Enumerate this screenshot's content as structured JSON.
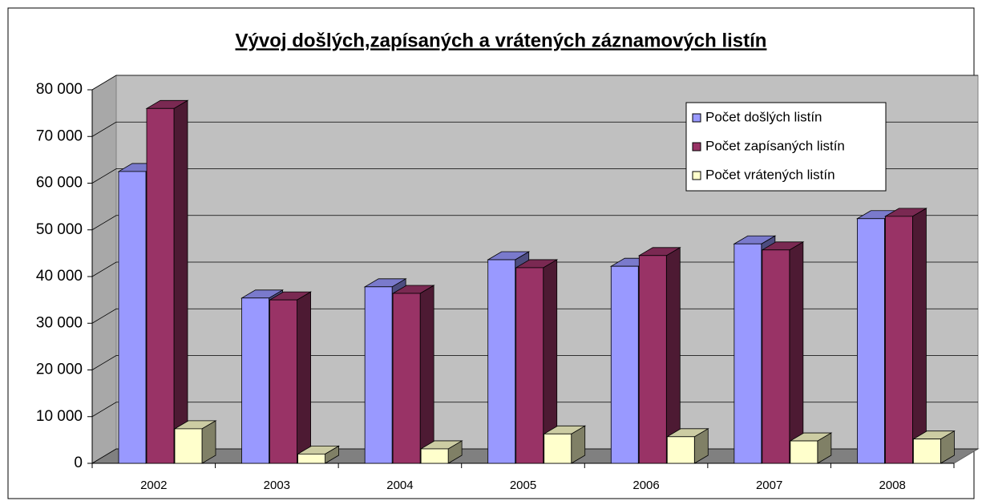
{
  "chart_data": {
    "type": "bar3d",
    "title": "Vývoj došlých,zapísaných a vrátených záznamových listín",
    "categories": [
      "2002",
      "2003",
      "2004",
      "2005",
      "2006",
      "2007",
      "2008"
    ],
    "series": [
      {
        "name": "Počet došlých listín",
        "color": "#9999ff",
        "values": [
          62500,
          35400,
          37800,
          43600,
          42200,
          47000,
          52400
        ]
      },
      {
        "name": "Počet zapísaných listín",
        "color": "#993366",
        "values": [
          76000,
          35000,
          36400,
          41900,
          44500,
          45700,
          52900
        ]
      },
      {
        "name": "Počet vrátených listín",
        "color": "#ffffcc",
        "values": [
          7400,
          2000,
          3100,
          6300,
          5700,
          4800,
          5200
        ]
      }
    ],
    "ylim": [
      0,
      80000
    ],
    "yticks": [
      0,
      {
        "value": 10000,
        "label": "10 000"
      },
      {
        "value": 20000,
        "label": "20 000"
      },
      {
        "value": 30000,
        "label": "30 000"
      },
      {
        "value": 40000,
        "label": "40 000"
      },
      {
        "value": 50000,
        "label": "50 000"
      },
      {
        "value": 60000,
        "label": "60 000"
      },
      {
        "value": 70000,
        "label": "70 000"
      },
      {
        "value": 80000,
        "label": "80 000"
      }
    ],
    "grid": true,
    "legend": "upper right"
  }
}
